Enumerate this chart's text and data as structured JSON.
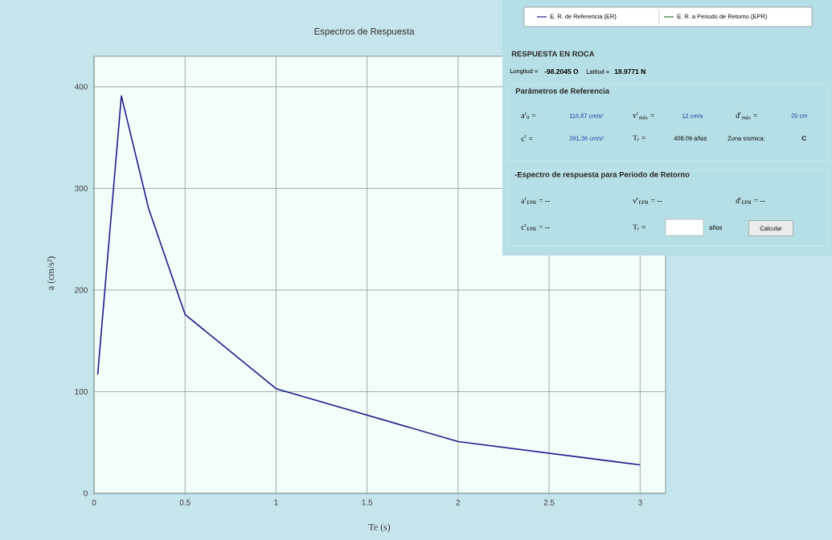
{
  "chart_data": {
    "type": "line",
    "title": "Espectros de Respuesta",
    "xlabel": "Te (s)",
    "ylabel": "a (cm/s²)",
    "x": [
      0.02,
      0.15,
      0.3,
      0.5,
      1,
      2,
      3
    ],
    "series": [
      {
        "name": "E. R. de Referencia (ER)",
        "color": "#1c1c8a",
        "values": [
          117,
          391,
          280,
          176,
          103,
          51,
          28
        ]
      },
      {
        "name": "E. R. a Periodo de Retorno (EPR)",
        "color": "#2a7a2a",
        "values": [
          null,
          null,
          null,
          null,
          null,
          null,
          null
        ]
      }
    ],
    "xlim": [
      0,
      3.14
    ],
    "ylim": [
      0,
      430
    ],
    "xticks": [
      0,
      0.5,
      1,
      1.5,
      2,
      2.5,
      3
    ],
    "yticks": [
      0,
      100,
      200,
      300,
      400
    ],
    "grid": true,
    "legend": "top right",
    "line_style": "solid",
    "annotations": [
      "RESPUESTA EN ROCA",
      "Longitud =",
      "-98.2045 O",
      "Latitud =",
      "18.9771 N",
      "Parámetros de Referencia",
      "a$^{r}$$_{0}$ =",
      "116.87 cm/s²",
      "v$^{r}$$_{máx}$ =",
      "12 cm/s",
      "d$^{r}$$_{máx}$ =",
      "20 cm",
      "c$^{r}$ =",
      "391.36 cm/s²",
      "T$_{r}$ =",
      "408.09 años",
      "Zona sísmica:",
      "C",
      "-Espectro de respuesta para Periodo de Retorno",
      "a$^{r}$$_{EPR}$ = --",
      "v$^{r}$$_{EPR}$ = --",
      "d$^{r}$$_{EPR}$ = --",
      "c$^{r}$$_{EPR}$ = --",
      "T$_{r}$ =",
      "años",
      "Calcular"
    ]
  }
}
